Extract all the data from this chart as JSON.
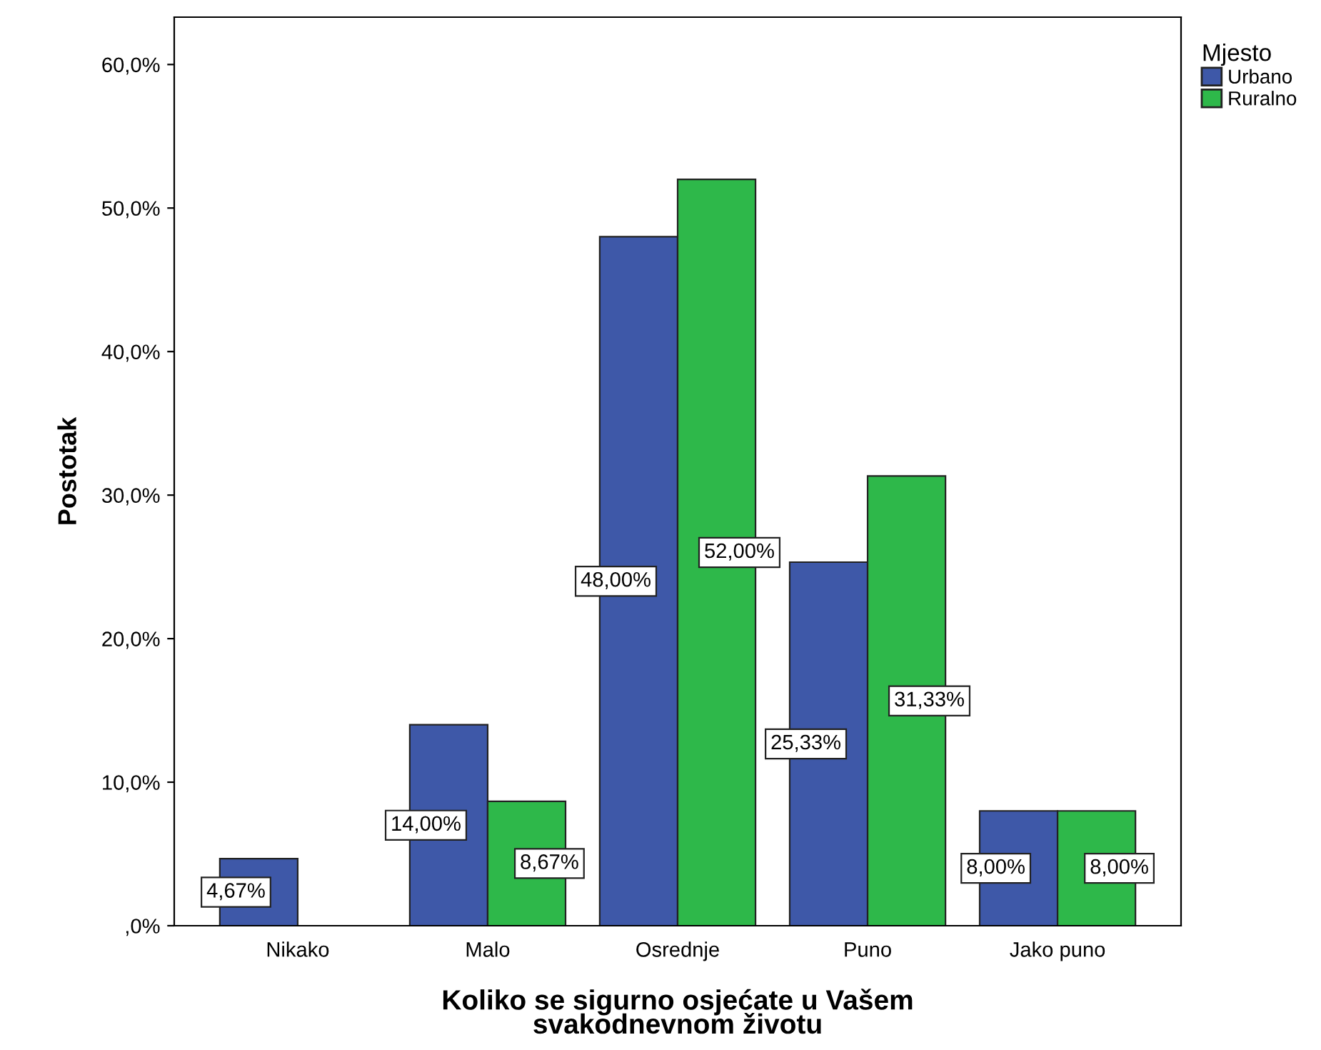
{
  "chart_data": {
    "type": "bar",
    "xlabel": "Koliko se sigurno osjećate u Vašem\nsvakodnevnom životu",
    "ylabel": "Postotak",
    "legend_title": "Mjesto",
    "legend": "top right",
    "categories": [
      "Nikako",
      "Malo",
      "Osrednje",
      "Puno",
      "Jako puno"
    ],
    "series": [
      {
        "name": "Urbano",
        "color": "#3e58a8",
        "values": [
          4.67,
          14.0,
          48.0,
          25.33,
          8.0
        ],
        "value_labels": [
          "4,67%",
          "14,00%",
          "48,00%",
          "25,33%",
          "8,00%"
        ]
      },
      {
        "name": "Ruralno",
        "color": "#2eb84a",
        "values": [
          0,
          8.67,
          52.0,
          31.33,
          8.0
        ],
        "value_labels": [
          null,
          "8,67%",
          "52,00%",
          "31,33%",
          "8,00%"
        ]
      }
    ],
    "ylim": [
      0,
      63.3
    ],
    "yticks": [
      {
        "value": 0,
        "label": ",0%"
      },
      {
        "value": 10,
        "label": "10,0%"
      },
      {
        "value": 20,
        "label": "20,0%"
      },
      {
        "value": 30,
        "label": "30,0%"
      },
      {
        "value": 40,
        "label": "40,0%"
      },
      {
        "value": 50,
        "label": "50,0%"
      },
      {
        "value": 60,
        "label": "60,0%"
      }
    ],
    "grid": false
  }
}
